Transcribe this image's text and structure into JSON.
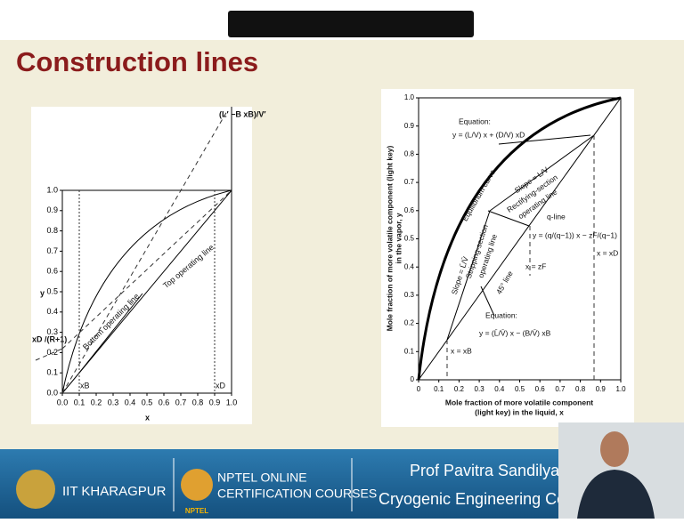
{
  "title": "Construction lines",
  "left_figure": {
    "top_label": "(L′ −B xB)/V′",
    "y_axis": "y",
    "x_axis": "x",
    "intercept_label": "xD /(R+1)",
    "xb_label": "xB",
    "xd_label": "xD",
    "top_line": "Top operating line",
    "bottom_line": "Bottom operating line",
    "y_ticks": [
      "0.0",
      "0.1",
      "0.2",
      "0.3",
      "0.4",
      "0.5",
      "0.6",
      "0.7",
      "0.8",
      "0.9",
      "1.0"
    ],
    "x_ticks": [
      "0.0",
      "0.1",
      "0.2",
      "0.3",
      "0.4",
      "0.5",
      "0.6",
      "0.7",
      "0.8",
      "0.9",
      "1.0"
    ]
  },
  "right_figure": {
    "equation_top_title": "Equation:",
    "equation_top": "y = (L/V) x + (D/V) xD",
    "equilibrium": "Equilibrium curve",
    "slope_top": "Slope = L/V",
    "rectifying": "Rectifying-section",
    "rectifying2": "operating line",
    "q_line": "q-line",
    "q_equation": "y = (q/(q−1)) x − zF/(q−1)",
    "stripping": "Stripping-section",
    "stripping2": "operating line",
    "line45": "45° line",
    "slope_bottom": "Slope = L̄/V̄",
    "x_zf": "x = zF",
    "x_xd": "x = xD",
    "x_xb": "x = xB",
    "equation_bottom_title": "Equation:",
    "equation_bottom": "y = (L̄/V̄) x − (B/V̄) xB",
    "y_axis": "Mole fraction of more volatile component (light key)",
    "y_axis2": "in the vapor, y",
    "x_axis": "Mole fraction of more volatile component",
    "x_axis2": "(light key) in the liquid, x",
    "y_ticks": [
      "0",
      "0.1",
      "0.2",
      "0.3",
      "0.4",
      "0.5",
      "0.6",
      "0.7",
      "0.8",
      "0.9",
      "1.0"
    ],
    "x_ticks": [
      "0",
      "0.1",
      "0.2",
      "0.3",
      "0.4",
      "0.5",
      "0.6",
      "0.7",
      "0.8",
      "0.9",
      "1.0"
    ]
  },
  "footer": {
    "institute": "IIT KHARAGPUR",
    "nptel1": "NPTEL ONLINE",
    "nptel2": "CERTIFICATION COURSES",
    "nptel_logo": "NPTEL",
    "speaker": "Prof Pavitra Sandilya",
    "department": "Cryogenic Engineering Cer"
  }
}
